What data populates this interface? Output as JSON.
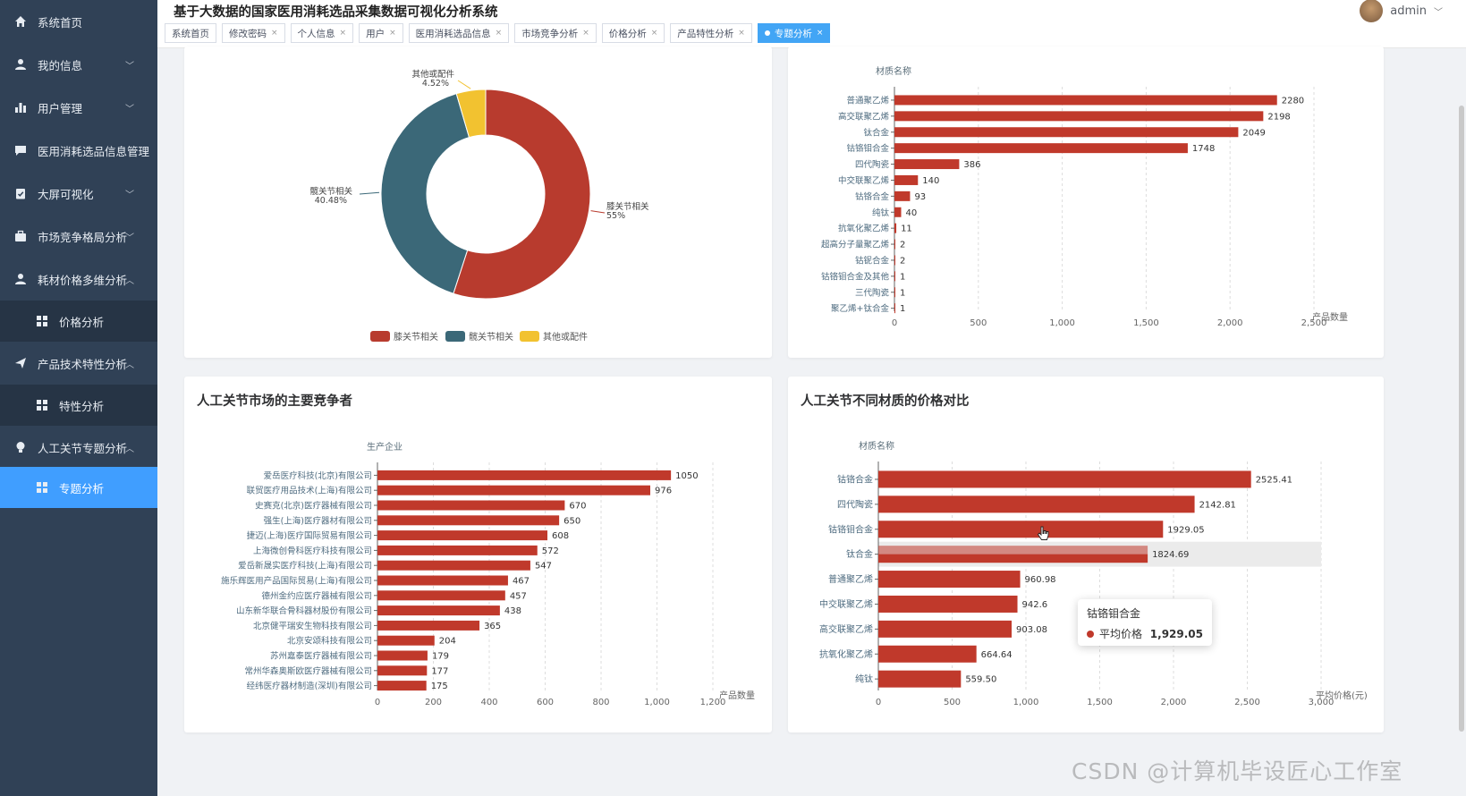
{
  "app": {
    "title": "基于大数据的国家医用消耗选品采集数据可视化分析系统",
    "user": "admin",
    "watermark": "CSDN @计算机毕设匠心工作室"
  },
  "sidebar": {
    "items": [
      {
        "label": "系统首页",
        "icon": "home-icon"
      },
      {
        "label": "我的信息",
        "icon": "user-icon",
        "arrow": "﹀"
      },
      {
        "label": "用户管理",
        "icon": "bar-chart-icon",
        "arrow": "﹀"
      },
      {
        "label": "医用消耗选品信息管理",
        "icon": "message-icon"
      },
      {
        "label": "大屏可视化",
        "icon": "clipboard-icon",
        "arrow": "﹀"
      },
      {
        "label": "市场竞争格局分析",
        "icon": "briefcase-icon",
        "arrow": "﹀"
      },
      {
        "label": "耗材价格多维分析",
        "icon": "user-icon",
        "arrow": "︿"
      },
      {
        "label": "价格分析",
        "icon": "grid-icon"
      },
      {
        "label": "产品技术特性分析",
        "icon": "send-icon",
        "arrow": "︿"
      },
      {
        "label": "特性分析",
        "icon": "grid-icon"
      },
      {
        "label": "人工关节专题分析",
        "icon": "bulb-icon",
        "arrow": "︿"
      },
      {
        "label": "专题分析",
        "icon": "grid-icon"
      }
    ]
  },
  "tabs": [
    "系统首页",
    "修改密码",
    "个人信息",
    "用户",
    "医用消耗选品信息",
    "市场竞争分析",
    "价格分析",
    "产品特性分析",
    "专题分析"
  ],
  "tab_close": "×",
  "panels": {
    "bottom_left_title": "人工关节市场的主要竞争者",
    "bottom_right_title": "人工关节不同材质的价格对比"
  },
  "tooltip": {
    "title": "钴铬钼合金",
    "series": "平均价格",
    "value": "1,929.05"
  },
  "colors": {
    "bar": "#c0392b",
    "pie_knee": "#b83b2e",
    "pie_hip": "#3b6878",
    "pie_other": "#f2c230",
    "sidebar_bg": "#304156",
    "active": "#409eff"
  },
  "chart_data": [
    {
      "type": "pie",
      "labels": [
        "膝关节相关",
        "髋关节相关",
        "其他或配件"
      ],
      "values": [
        55,
        40.48,
        4.52
      ],
      "slice_labels": [
        "55%",
        "40.48%",
        "4.52%"
      ],
      "legend": [
        "膝关节相关",
        "髋关节相关",
        "其他或配件"
      ],
      "legend_position": "bottom"
    },
    {
      "type": "bar",
      "orientation": "horizontal",
      "ylabel": "材质名称",
      "xlabel": "产品数量",
      "categories": [
        "普通聚乙烯",
        "高交联聚乙烯",
        "钛合金",
        "钴铬钼合金",
        "四代陶瓷",
        "中交联聚乙烯",
        "钴铬合金",
        "纯钛",
        "抗氧化聚乙烯",
        "超高分子量聚乙烯",
        "钴铌合金",
        "钴铬钼合金及其他",
        "三代陶瓷",
        "聚乙烯+钛合金"
      ],
      "values": [
        2280,
        2198,
        2049,
        1748,
        386,
        140,
        93,
        40,
        11,
        2,
        2,
        1,
        1,
        1
      ],
      "xlim": [
        0,
        2500
      ],
      "xticks": [
        0,
        500,
        1000,
        1500,
        2000,
        2500
      ],
      "xtick_labels": [
        "0",
        "500",
        "1,000",
        "1,500",
        "2,000",
        "2,500"
      ]
    },
    {
      "type": "bar",
      "orientation": "horizontal",
      "ylabel": "生产企业",
      "xlabel": "产品数量",
      "categories": [
        "爱岳医疗科技(北京)有限公司",
        "联贸医疗用品技术(上海)有限公司",
        "史赛克(北京)医疗器械有限公司",
        "强生(上海)医疗器材有限公司",
        "捷迈(上海)医疗国际贸易有限公司",
        "上海微创骨科医疗科技有限公司",
        "爱岳新晟实医疗科技(上海)有限公司",
        "施乐辉医用产品国际贸易(上海)有限公司",
        "德州金约应医疗器械有限公司",
        "山东新华联合骨科器材股份有限公司",
        "北京健平瑞安生物科技有限公司",
        "北京安颂科技有限公司",
        "苏州嘉泰医疗器械有限公司",
        "常州华森奥斯欧医疗器械有限公司",
        "经纬医疗器材制造(深圳)有限公司"
      ],
      "values": [
        1050,
        976,
        670,
        650,
        608,
        572,
        547,
        467,
        457,
        438,
        365,
        204,
        179,
        177,
        175
      ],
      "xlim": [
        0,
        1200
      ],
      "xticks": [
        0,
        200,
        400,
        600,
        800,
        1000,
        1200
      ],
      "xtick_labels": [
        "0",
        "200",
        "400",
        "600",
        "800",
        "1,000",
        "1,200"
      ]
    },
    {
      "type": "bar",
      "orientation": "horizontal",
      "ylabel": "材质名称",
      "xlabel": "平均价格(元)",
      "categories": [
        "钴铬合金",
        "四代陶瓷",
        "钴铬钼合金",
        "钛合金",
        "普通聚乙烯",
        "中交联聚乙烯",
        "高交联聚乙烯",
        "抗氧化聚乙烯",
        "纯钛"
      ],
      "values": [
        2525.41,
        2142.81,
        1929.05,
        1824.69,
        960.98,
        942.6,
        903.08,
        664.64,
        559.5
      ],
      "value_labels": [
        "2525.41",
        "2142.81",
        "1929.05",
        "1824.69",
        "960.98",
        "942.6",
        "903.08",
        "664.64",
        "559.50"
      ],
      "xlim": [
        0,
        3000
      ],
      "xticks": [
        0,
        500,
        1000,
        1500,
        2000,
        2500,
        3000
      ],
      "xtick_labels": [
        "0",
        "500",
        "1,000",
        "1,500",
        "2,000",
        "2,500",
        "3,000"
      ],
      "highlighted": "钛合金"
    }
  ]
}
